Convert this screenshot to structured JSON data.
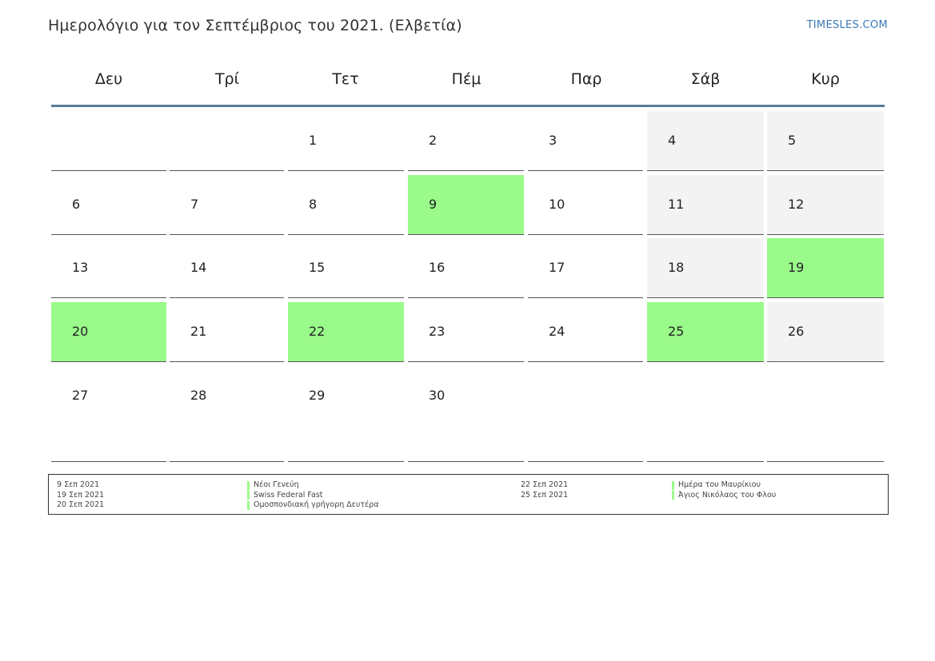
{
  "header": {
    "title": "Ημερολόγιο για τον Σεπτέμβριος του 2021. (Ελβετία)",
    "brand": "TIMESLES.COM"
  },
  "colors": {
    "holiday": "#9afb8a",
    "weekend": "#f3f3f3",
    "header_rule": "#5b7a9c",
    "brand": "#3b7ab5"
  },
  "weekdays": [
    "Δευ",
    "Τρί",
    "Τετ",
    "Πέμ",
    "Παρ",
    "Σάβ",
    "Κυρ"
  ],
  "weeks": [
    [
      null,
      null,
      {
        "day": "1"
      },
      {
        "day": "2"
      },
      {
        "day": "3"
      },
      {
        "day": "4",
        "weekend": true
      },
      {
        "day": "5",
        "weekend": true
      }
    ],
    [
      {
        "day": "6"
      },
      {
        "day": "7"
      },
      {
        "day": "8"
      },
      {
        "day": "9",
        "holiday": true
      },
      {
        "day": "10"
      },
      {
        "day": "11",
        "weekend": true
      },
      {
        "day": "12",
        "weekend": true
      }
    ],
    [
      {
        "day": "13"
      },
      {
        "day": "14"
      },
      {
        "day": "15"
      },
      {
        "day": "16"
      },
      {
        "day": "17"
      },
      {
        "day": "18",
        "weekend": true
      },
      {
        "day": "19",
        "holiday": true
      }
    ],
    [
      {
        "day": "20",
        "holiday": true
      },
      {
        "day": "21"
      },
      {
        "day": "22",
        "holiday": true
      },
      {
        "day": "23"
      },
      {
        "day": "24"
      },
      {
        "day": "25",
        "holiday": true
      },
      {
        "day": "26",
        "weekend": true
      }
    ],
    [
      {
        "day": "27"
      },
      {
        "day": "28"
      },
      {
        "day": "29"
      },
      {
        "day": "30"
      },
      null,
      null,
      null
    ]
  ],
  "legend": {
    "left": [
      {
        "date": "9 Σεπ 2021",
        "name": "Νέοι Γενεύη"
      },
      {
        "date": "19 Σεπ 2021",
        "name": "Swiss Federal Fast"
      },
      {
        "date": "20 Σεπ 2021",
        "name": "Ομοσπονδιακή γρήγορη Δευτέρα"
      }
    ],
    "right": [
      {
        "date": "22 Σεπ 2021",
        "name": "Ημέρα του Μαυρίκιου"
      },
      {
        "date": "25 Σεπ 2021",
        "name": "Άγιος Νικόλαος του Φλου"
      }
    ]
  }
}
